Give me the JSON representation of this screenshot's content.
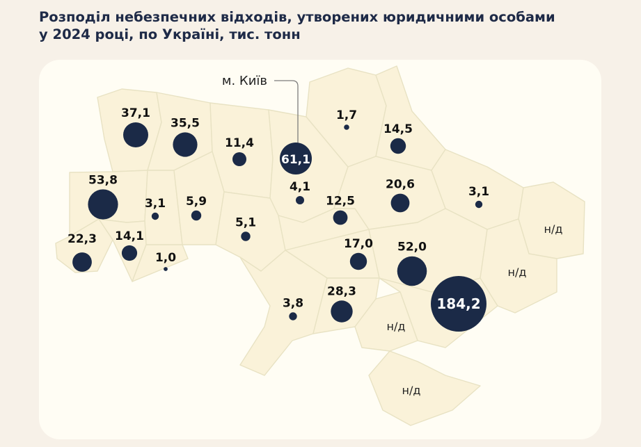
{
  "title": {
    "line1": "Розподіл небезпечних відходів, утворених юридичними особами",
    "line2": "у 2024 році, по Україні, тис. тонн"
  },
  "kyiv_callout": "м. Київ",
  "colors": {
    "background": "#f7f1e8",
    "card": "#fffdf4",
    "region_fill": "#faf2d9",
    "region_border": "#e8e2c3",
    "bubble": "#1b2a47",
    "text": "#111111"
  },
  "regions": [
    {
      "id": "volyn",
      "value": 37.1,
      "label": "37,1"
    },
    {
      "id": "rivne",
      "value": 35.5,
      "label": "35,5"
    },
    {
      "id": "zhytomyr",
      "value": 11.4,
      "label": "11,4"
    },
    {
      "id": "kyiv_city",
      "value": 61.1,
      "label": "61,1"
    },
    {
      "id": "chernihiv",
      "value": 1.7,
      "label": "1,7"
    },
    {
      "id": "sumy",
      "value": 14.5,
      "label": "14,5"
    },
    {
      "id": "lviv",
      "value": 53.8,
      "label": "53,8"
    },
    {
      "id": "ternopil",
      "value": 3.1,
      "label": "3,1"
    },
    {
      "id": "khmelnytskyi",
      "value": 5.9,
      "label": "5,9"
    },
    {
      "id": "kyiv_oblast",
      "value": 4.1,
      "label": "4,1"
    },
    {
      "id": "poltava",
      "value": 20.6,
      "label": "20,6"
    },
    {
      "id": "kharkiv",
      "value": 3.1,
      "label": "3,1"
    },
    {
      "id": "cherkasy",
      "value": 12.5,
      "label": "12,5"
    },
    {
      "id": "vinnytsia",
      "value": 5.1,
      "label": "5,1"
    },
    {
      "id": "zakarpattia",
      "value": 22.3,
      "label": "22,3"
    },
    {
      "id": "ivano_frankivsk",
      "value": 14.1,
      "label": "14,1"
    },
    {
      "id": "chernivtsi",
      "value": 1.0,
      "label": "1,0"
    },
    {
      "id": "kirovohrad",
      "value": 17.0,
      "label": "17,0"
    },
    {
      "id": "dnipropetrovsk",
      "value": 52.0,
      "label": "52,0"
    },
    {
      "id": "odesa",
      "value": 3.8,
      "label": "3,8"
    },
    {
      "id": "mykolaiv",
      "value": 28.3,
      "label": "28,3"
    },
    {
      "id": "zaporizhzhia",
      "value": 184.2,
      "label": "184,2"
    },
    {
      "id": "luhansk",
      "value": null,
      "label": "н/д"
    },
    {
      "id": "donetsk",
      "value": null,
      "label": "н/д"
    },
    {
      "id": "kherson",
      "value": null,
      "label": "н/д"
    },
    {
      "id": "crimea",
      "value": null,
      "label": "н/д"
    }
  ]
}
